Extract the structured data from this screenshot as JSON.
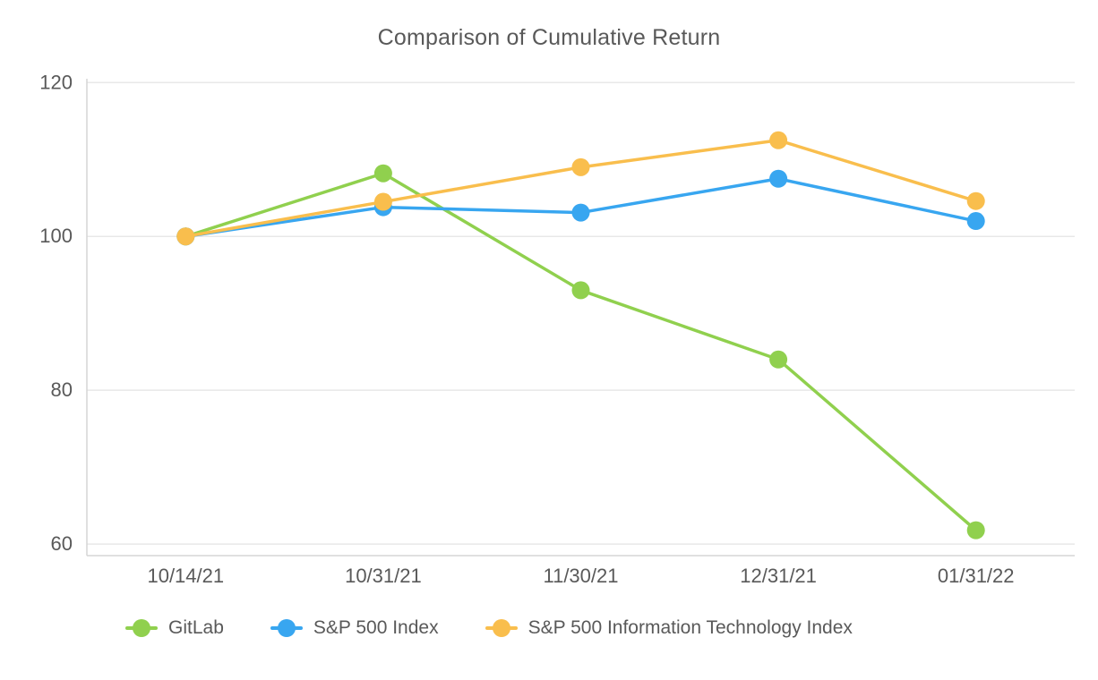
{
  "chart_data": {
    "type": "line",
    "title": "Comparison of Cumulative Return",
    "categories": [
      "10/14/21",
      "10/31/21",
      "11/30/21",
      "12/31/21",
      "01/31/22"
    ],
    "series": [
      {
        "name": "GitLab",
        "color": "#90D04E",
        "values": [
          100,
          108.2,
          93.0,
          84.0,
          61.8
        ]
      },
      {
        "name": "S&P 500 Index",
        "color": "#38A6F0",
        "values": [
          100,
          103.8,
          103.1,
          107.5,
          102.0
        ]
      },
      {
        "name": "S&P 500 Information Technology Index",
        "color": "#F9BE4D",
        "values": [
          100,
          104.5,
          109.0,
          112.5,
          104.6
        ]
      }
    ],
    "yticks": [
      60,
      80,
      100,
      120
    ],
    "ylim": [
      58.5,
      120.5
    ],
    "grid": true,
    "legend_position": "bottom",
    "colors": {
      "axis_line": "#D6D6D6",
      "gridline": "#E8E8E8",
      "text": "#595959"
    }
  }
}
